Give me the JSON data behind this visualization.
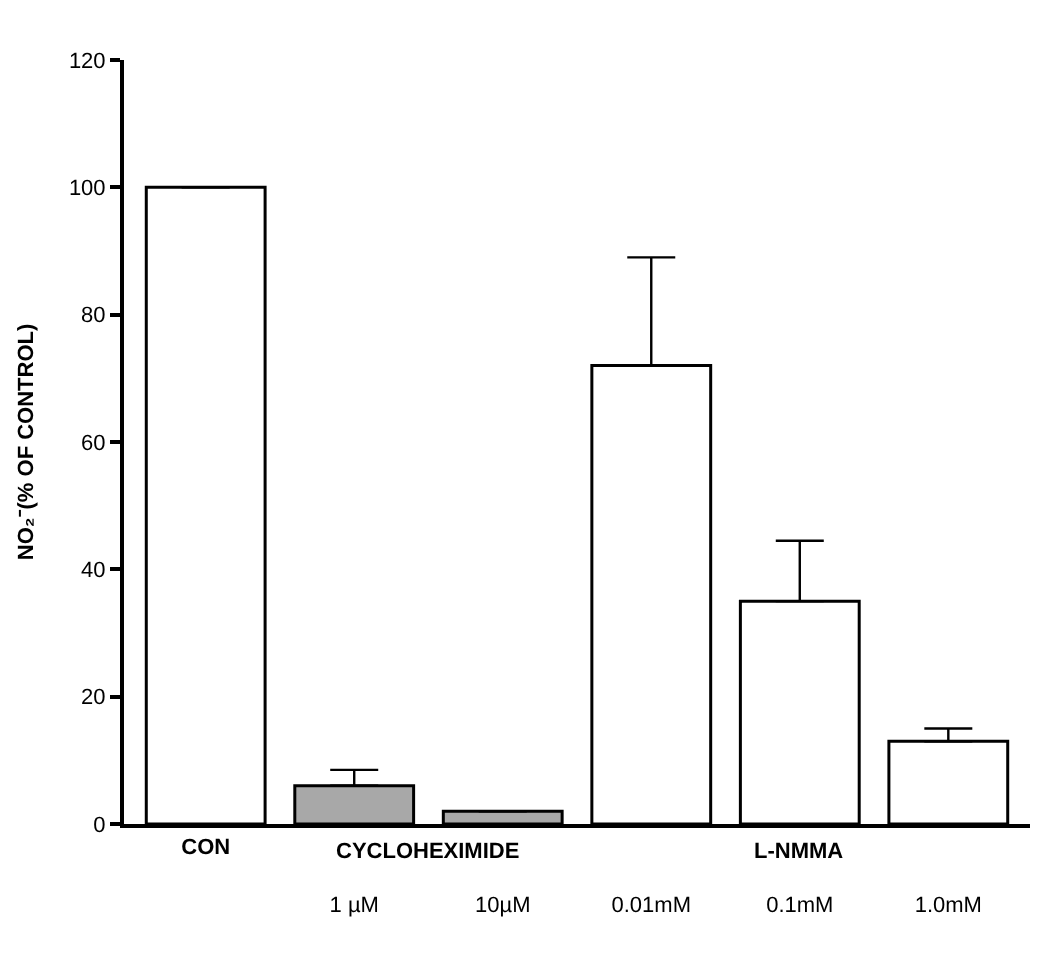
{
  "chart_data": {
    "type": "bar",
    "ylabel": "NO₂⁻(% OF CONTROL)",
    "categories": [
      "CON",
      "1 µM",
      "10µM",
      "0.01mM",
      "0.1mM",
      "1.0mM"
    ],
    "values": [
      100,
      6,
      2,
      72,
      35,
      13
    ],
    "errors": [
      null,
      [
        6,
        8.5
      ],
      null,
      [
        72,
        89
      ],
      [
        35,
        44.5
      ],
      [
        13,
        15
      ]
    ],
    "colors": [
      "#000000",
      "#a8a8a8",
      "#a8a8a8",
      "#000000",
      "#000000",
      "#000000"
    ],
    "annotations": [
      "CYCLOHEXIMIDE",
      "L-NMMA"
    ],
    "ylim": [
      0,
      120
    ],
    "yticks": [
      0,
      20,
      40,
      60,
      80,
      100,
      120
    ],
    "grid": false,
    "legend": false
  }
}
